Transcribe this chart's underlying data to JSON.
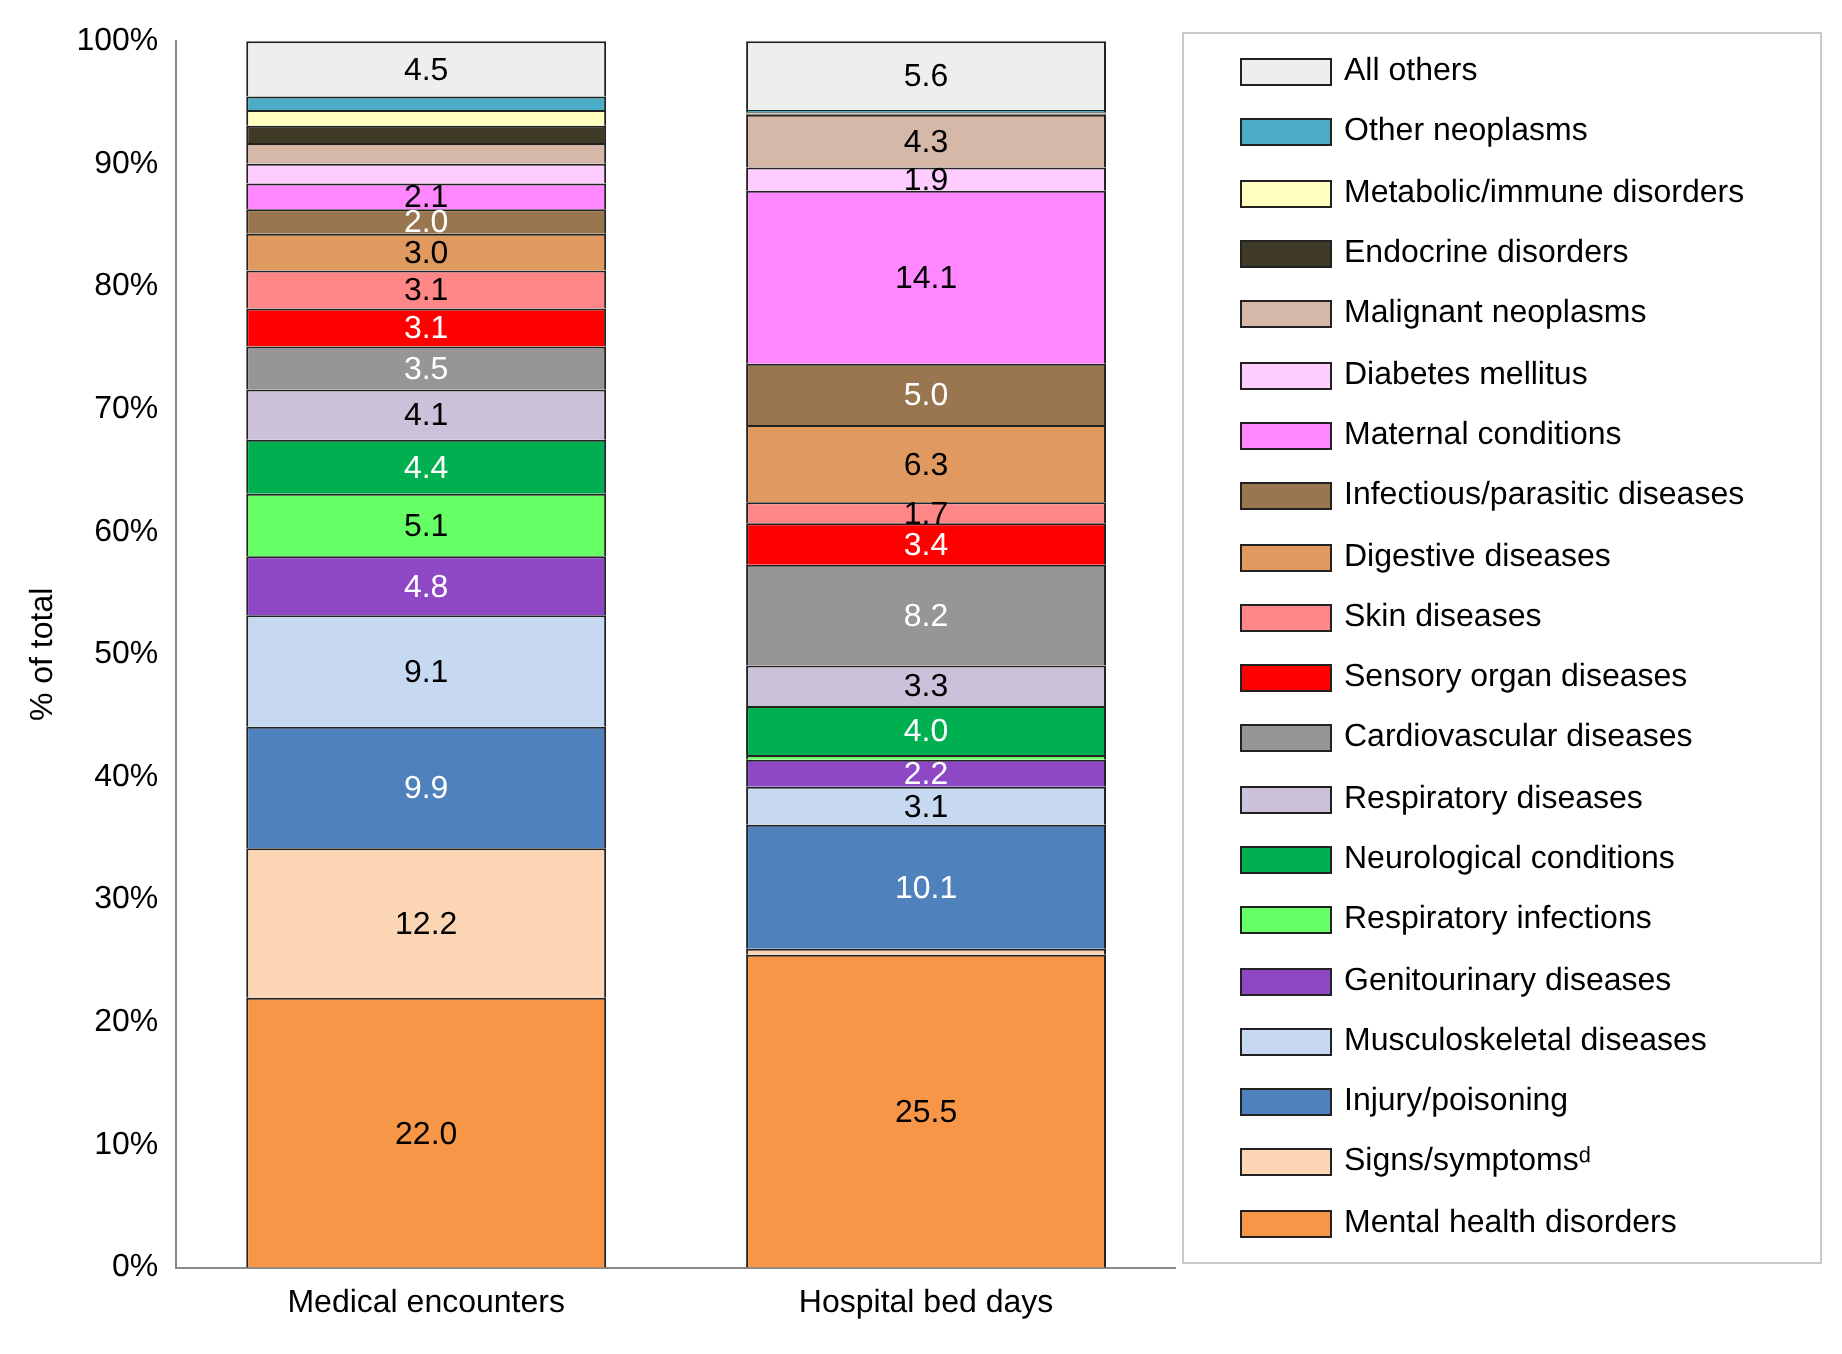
{
  "chart_data": {
    "type": "bar",
    "stacked": true,
    "ylabel": "% of total",
    "categories": [
      "Medical encounters",
      "Hospital bed days"
    ],
    "ylim": [
      0,
      100
    ],
    "yticks": [
      {
        "value": 0,
        "label": "0%"
      },
      {
        "value": 10,
        "label": "10%"
      },
      {
        "value": 20,
        "label": "20%"
      },
      {
        "value": 30,
        "label": "30%"
      },
      {
        "value": 40,
        "label": "40%"
      },
      {
        "value": 50,
        "label": "50%"
      },
      {
        "value": 60,
        "label": "60%"
      },
      {
        "value": 70,
        "label": "70%"
      },
      {
        "value": 80,
        "label": "80%"
      },
      {
        "value": 90,
        "label": "90%"
      },
      {
        "value": 100,
        "label": "100%"
      }
    ],
    "grid": false,
    "legend": "right",
    "series": [
      {
        "name": "Mental health disorders",
        "color": "#f79646",
        "values": [
          22.0,
          25.5
        ],
        "value_labels": [
          "22.0",
          "25.5"
        ]
      },
      {
        "name": "Signs/symptomsᵈ",
        "color": "#fcd5b5",
        "values": [
          12.2,
          0.5
        ],
        "value_labels": [
          "12.2",
          null
        ]
      },
      {
        "name": "Injury/poisoning",
        "color": "#4f81bd",
        "values": [
          9.9,
          10.1
        ],
        "value_labels": [
          "9.9",
          "10.1"
        ]
      },
      {
        "name": "Musculoskeletal diseases",
        "color": "#c6d9f1",
        "values": [
          9.1,
          3.1
        ],
        "value_labels": [
          "9.1",
          "3.1"
        ]
      },
      {
        "name": "Genitourinary diseases",
        "color": "#8e48c6",
        "values": [
          4.8,
          2.2
        ],
        "value_labels": [
          "4.8",
          "2.2"
        ]
      },
      {
        "name": "Respiratory infections",
        "color": "#66ff66",
        "values": [
          5.1,
          0.4
        ],
        "value_labels": [
          "5.1",
          null
        ]
      },
      {
        "name": "Neurological conditions",
        "color": "#00b050",
        "values": [
          4.4,
          4.0
        ],
        "value_labels": [
          "4.4",
          "4.0"
        ]
      },
      {
        "name": "Respiratory diseases",
        "color": "#ccc1da",
        "values": [
          4.1,
          3.3
        ],
        "value_labels": [
          "4.1",
          "3.3"
        ]
      },
      {
        "name": "Cardiovascular diseases",
        "color": "#969696",
        "values": [
          3.5,
          8.2
        ],
        "value_labels": [
          "3.5",
          "8.2"
        ]
      },
      {
        "name": "Sensory organ diseases",
        "color": "#ff0000",
        "values": [
          3.1,
          3.4
        ],
        "value_labels": [
          "3.1",
          "3.4"
        ]
      },
      {
        "name": "Skin diseases",
        "color": "#ff8787",
        "values": [
          3.1,
          1.7
        ],
        "value_labels": [
          "3.1",
          "1.7"
        ]
      },
      {
        "name": "Digestive diseases",
        "color": "#e09a60",
        "values": [
          3.0,
          6.3
        ],
        "value_labels": [
          "3.0",
          "6.3"
        ]
      },
      {
        "name": "Infectious/parasitic diseases",
        "color": "#9a7650",
        "values": [
          2.0,
          5.0
        ],
        "value_labels": [
          "2.0",
          "5.0"
        ]
      },
      {
        "name": "Maternal conditions",
        "color": "#ff87ff",
        "values": [
          2.1,
          14.1
        ],
        "value_labels": [
          "2.1",
          "14.1"
        ]
      },
      {
        "name": "Diabetes mellitus",
        "color": "#ffccff",
        "values": [
          1.6,
          1.9
        ],
        "value_labels": [
          null,
          "1.9"
        ]
      },
      {
        "name": "Malignant neoplasms",
        "color": "#d5b8a8",
        "values": [
          1.7,
          4.3
        ],
        "value_labels": [
          null,
          "4.3"
        ]
      },
      {
        "name": "Endocrine disorders",
        "color": "#3f3a28",
        "values": [
          1.4,
          0.1
        ],
        "value_labels": [
          null,
          null
        ]
      },
      {
        "name": "Metabolic/immune disorders",
        "color": "#ffffc0",
        "values": [
          1.3,
          0.1
        ],
        "value_labels": [
          null,
          null
        ]
      },
      {
        "name": "Other neoplasms",
        "color": "#4bacc6",
        "values": [
          1.1,
          0.2
        ],
        "value_labels": [
          null,
          null
        ]
      },
      {
        "name": "All others",
        "color": "#eeeeee",
        "values": [
          4.5,
          5.6
        ],
        "value_labels": [
          "4.5",
          "5.6"
        ]
      }
    ]
  }
}
